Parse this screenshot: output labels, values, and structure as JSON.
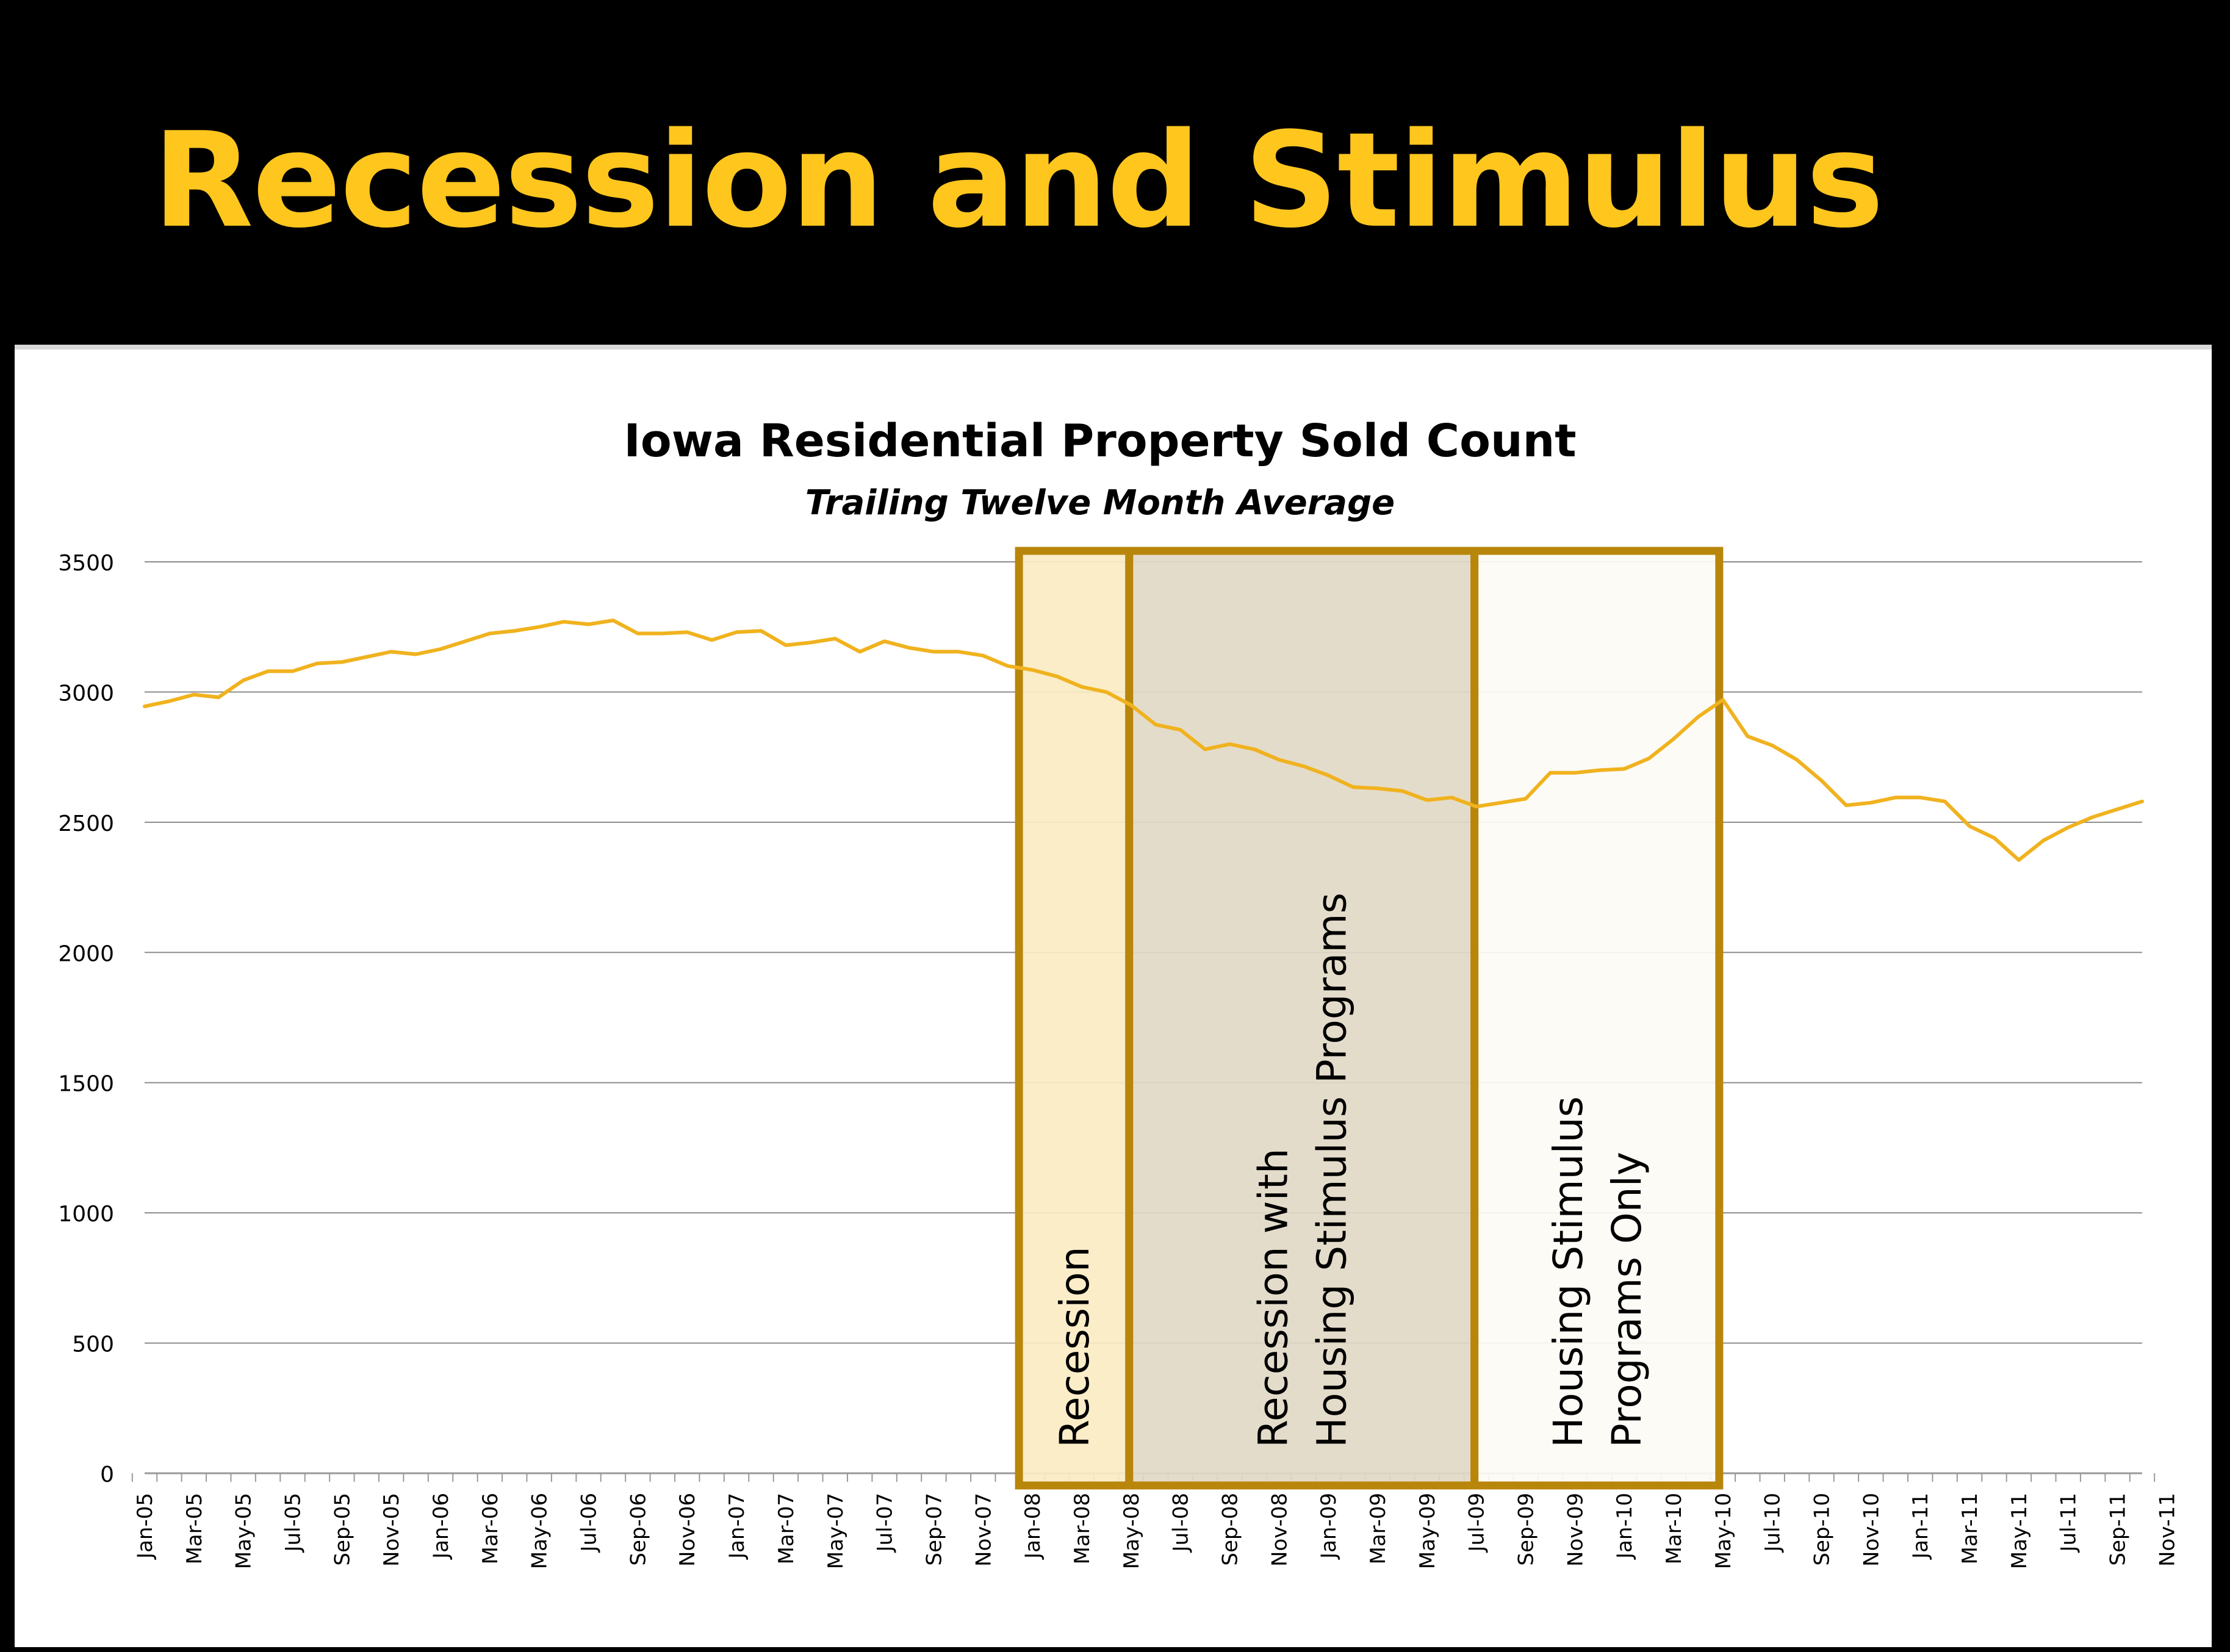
{
  "slide": {
    "title": "Recession and Stimulus",
    "colors": {
      "background": "#000000",
      "title": "#FFC61E"
    }
  },
  "chart_data": {
    "type": "line",
    "title": "Iowa Residential Property Sold Count",
    "subtitle": "Trailing Twelve Month Average",
    "ylim": [
      0,
      3500
    ],
    "yticks": [
      0,
      500,
      1000,
      1500,
      2000,
      2500,
      3000,
      3500
    ],
    "grid": true,
    "line_color": "#F0B21E",
    "x_start_month": "Jan-05",
    "x_tick_labels": [
      "Jan-05",
      "Mar-05",
      "May-05",
      "Jul-05",
      "Sep-05",
      "Nov-05",
      "Jan-06",
      "Mar-06",
      "May-06",
      "Jul-06",
      "Sep-06",
      "Nov-06",
      "Jan-07",
      "Mar-07",
      "May-07",
      "Jul-07",
      "Sep-07",
      "Nov-07",
      "Jan-08",
      "Mar-08",
      "May-08",
      "Jul-08",
      "Sep-08",
      "Nov-08",
      "Jan-09",
      "Mar-09",
      "May-09",
      "Jul-09",
      "Sep-09",
      "Nov-09",
      "Jan-10",
      "Mar-10",
      "May-10",
      "Jul-10",
      "Sep-10",
      "Nov-10",
      "Jan-11",
      "Mar-11",
      "May-11",
      "Jul-11",
      "Sep-11",
      "Nov-11"
    ],
    "series": [
      {
        "name": "Sold Count",
        "values": [
          2945,
          2965,
          2990,
          2980,
          3045,
          3080,
          3080,
          3110,
          3115,
          3135,
          3155,
          3145,
          3165,
          3195,
          3225,
          3235,
          3250,
          3270,
          3260,
          3275,
          3225,
          3225,
          3230,
          3200,
          3230,
          3235,
          3180,
          3190,
          3205,
          3155,
          3195,
          3170,
          3155,
          3155,
          3140,
          3100,
          3085,
          3060,
          3020,
          3000,
          2950,
          2875,
          2855,
          2780,
          2800,
          2780,
          2740,
          2715,
          2680,
          2635,
          2630,
          2620,
          2585,
          2595,
          2560,
          2575,
          2590,
          2690,
          2690,
          2700,
          2705,
          2745,
          2820,
          2905,
          2970,
          2830,
          2795,
          2740,
          2660,
          2565,
          2575,
          2595,
          2595,
          2580,
          2485,
          2440,
          2355,
          2430,
          2480,
          2520,
          2550,
          2580
        ]
      }
    ],
    "annotations": [
      {
        "label": "Recession",
        "start_month": 36,
        "end_month": 40,
        "fill": "#FAEBC3",
        "lines": [
          "Recession"
        ]
      },
      {
        "label": "Recession with Housing Stimulus Programs",
        "start_month": 40,
        "end_month": 54,
        "fill": "#E2D9C6",
        "lines": [
          "Recession with",
          "Housing Stimulus Programs"
        ]
      },
      {
        "label": "Housing Stimulus Programs Only",
        "start_month": 54,
        "end_month": 64,
        "fill": "#FDFBF5",
        "lines": [
          "Housing Stimulus",
          "Programs Only"
        ]
      }
    ],
    "annotation_border_color": "#B8860B"
  }
}
